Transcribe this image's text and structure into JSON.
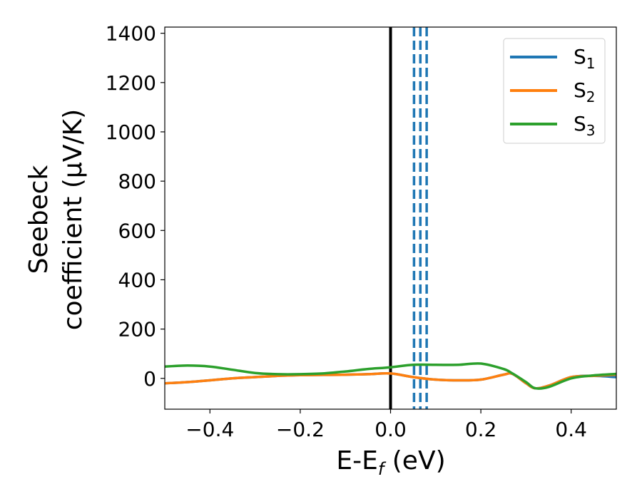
{
  "chart_data": {
    "type": "line",
    "xlabel": "E-E$_f$ (eV)",
    "xlabel_main": "E-E",
    "xlabel_sub": "f",
    "xlabel_unit": " (eV)",
    "ylabel": "Seebeck coefficient (μV/K)",
    "ylabel_line1": "Seebeck",
    "ylabel_line2": "coefficient  (μV/K)",
    "xlim": [
      -0.5,
      0.5
    ],
    "ylim": [
      -125,
      1425
    ],
    "xticks": [
      -0.4,
      -0.2,
      0.0,
      0.2,
      0.4
    ],
    "xtick_labels": [
      "−0.4",
      "−0.2",
      "0.0",
      "0.2",
      "0.4"
    ],
    "yticks": [
      0,
      200,
      400,
      600,
      800,
      1000,
      1200,
      1400
    ],
    "ytick_labels": [
      "0",
      "200",
      "400",
      "600",
      "800",
      "1000",
      "1200",
      "1400"
    ],
    "grid": false,
    "legend_position": "top-right",
    "vertical_lines": [
      {
        "x": 0.0,
        "style": "solid",
        "color": "#000000"
      },
      {
        "x": 0.052,
        "style": "dashed",
        "color": "#1f77b4"
      },
      {
        "x": 0.066,
        "style": "dashed",
        "color": "#1f77b4"
      },
      {
        "x": 0.08,
        "style": "dashed",
        "color": "#1f77b4"
      }
    ],
    "x": [
      -0.5,
      -0.45,
      -0.4,
      -0.35,
      -0.3,
      -0.25,
      -0.2,
      -0.15,
      -0.1,
      -0.05,
      0.0,
      0.05,
      0.1,
      0.15,
      0.2,
      0.25,
      0.27,
      0.3,
      0.32,
      0.35,
      0.4,
      0.45,
      0.5
    ],
    "series": [
      {
        "name": "S",
        "name_sub": "1",
        "color": "#1f77b4",
        "values": [
          -20,
          -15,
          -8,
          0,
          5,
          10,
          13,
          14,
          15,
          17,
          20,
          5,
          -5,
          -8,
          -5,
          15,
          18,
          -20,
          -40,
          -30,
          5,
          10,
          5
        ]
      },
      {
        "name": "S",
        "name_sub": "2",
        "color": "#ff7f0e",
        "values": [
          -20,
          -15,
          -8,
          0,
          5,
          10,
          13,
          14,
          15,
          17,
          20,
          5,
          -5,
          -8,
          -5,
          15,
          18,
          -20,
          -40,
          -30,
          5,
          10,
          15
        ]
      },
      {
        "name": "S",
        "name_sub": "3",
        "color": "#2ca02c",
        "values": [
          48,
          52,
          48,
          35,
          22,
          17,
          17,
          20,
          28,
          38,
          45,
          55,
          55,
          55,
          60,
          38,
          20,
          -15,
          -40,
          -35,
          0,
          12,
          18
        ]
      }
    ]
  }
}
